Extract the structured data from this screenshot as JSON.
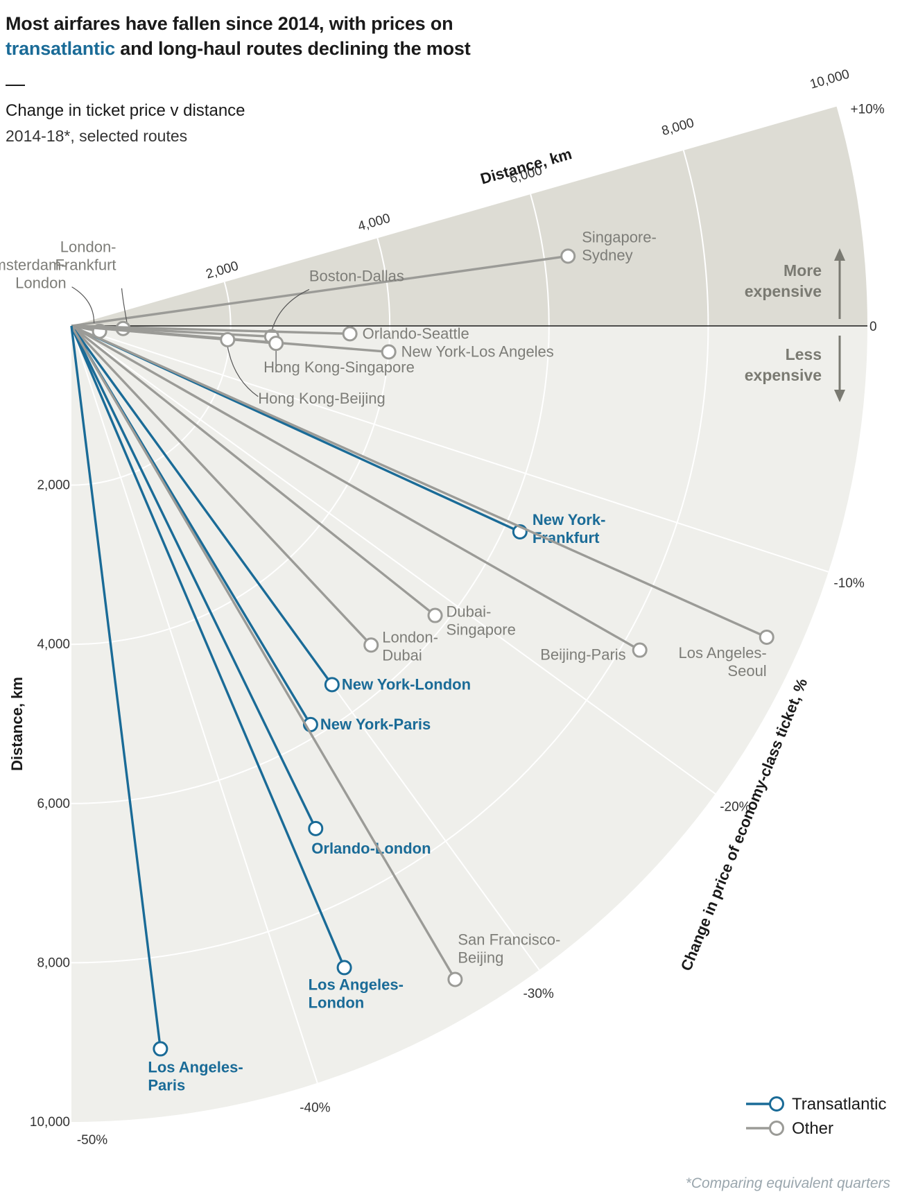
{
  "title": {
    "before": "Most airfares have fallen since 2014, with prices on",
    "highlight": "transatlantic",
    "after": "and long-haul routes declining the most"
  },
  "subtitle": "Change in ticket price v distance",
  "subtitle2": "2014-18*, selected routes",
  "footnote": "*Comparing equivalent quarters",
  "annotations": {
    "more": [
      "More",
      "expensive"
    ],
    "less": [
      "Less",
      "expensive"
    ]
  },
  "colors": {
    "transatlantic": "#1a6b97",
    "other": "#9b9b97",
    "panel": "#efefeb",
    "panel_positive": "#dddcd4"
  },
  "chart_data": {
    "type": "radial-scatter",
    "angle_axis": {
      "label": "Change in price of economy-class ticket, %",
      "min": -50,
      "max": 10,
      "ticks": [
        {
          "value": 10,
          "label": "+10%"
        },
        {
          "value": 0,
          "label": "0"
        },
        {
          "value": -10,
          "label": "-10%"
        },
        {
          "value": -20,
          "label": "-20%"
        },
        {
          "value": -30,
          "label": "-30%"
        },
        {
          "value": -40,
          "label": "-40%"
        },
        {
          "value": -50,
          "label": "-50%"
        }
      ]
    },
    "radius_axis": {
      "label": "Distance, km",
      "min": 0,
      "max": 10000,
      "ticks": [
        {
          "value": 2000,
          "label": "2,000"
        },
        {
          "value": 4000,
          "label": "4,000"
        },
        {
          "value": 6000,
          "label": "6,000"
        },
        {
          "value": 8000,
          "label": "8,000"
        },
        {
          "value": 10000,
          "label": "10,000"
        }
      ]
    },
    "legend": {
      "position": "bottom-right",
      "items": [
        {
          "label": "Transatlantic",
          "group": "transatlantic"
        },
        {
          "label": "Other",
          "group": "other"
        }
      ]
    },
    "series": [
      {
        "route": [
          "Singapore-",
          "Sydney"
        ],
        "group": "other",
        "distance_km": 6300,
        "change_pct": 5.0
      },
      {
        "route": [
          "London-",
          "Frankfurt"
        ],
        "group": "other",
        "distance_km": 650,
        "change_pct": -1.6
      },
      {
        "route": [
          "Amsterdam-",
          "London"
        ],
        "group": "other",
        "distance_km": 360,
        "change_pct": -6.0
      },
      {
        "route": [
          "Boston-Dallas"
        ],
        "group": "other",
        "distance_km": 2520,
        "change_pct": -1.7
      },
      {
        "route": [
          "Orlando-Seattle"
        ],
        "group": "other",
        "distance_km": 3500,
        "change_pct": -0.9
      },
      {
        "route": [
          "New York-Los Angeles"
        ],
        "group": "other",
        "distance_km": 4000,
        "change_pct": -2.6
      },
      {
        "route": [
          "Hong Kong-Singapore"
        ],
        "group": "other",
        "distance_km": 2580,
        "change_pct": -2.7
      },
      {
        "route": [
          "Hong Kong-Beijing"
        ],
        "group": "other",
        "distance_km": 1970,
        "change_pct": -2.8
      },
      {
        "route": [
          "New York-",
          "Frankfurt"
        ],
        "group": "transatlantic",
        "distance_km": 6200,
        "change_pct": -13.7
      },
      {
        "route": [
          "Dubai-",
          "Singapore"
        ],
        "group": "other",
        "distance_km": 5840,
        "change_pct": -21.4
      },
      {
        "route": [
          "London-",
          "Dubai"
        ],
        "group": "other",
        "distance_km": 5500,
        "change_pct": -26.0
      },
      {
        "route": [
          "New York-London"
        ],
        "group": "transatlantic",
        "distance_km": 5570,
        "change_pct": -30.0
      },
      {
        "route": [
          "New York-Paris"
        ],
        "group": "transatlantic",
        "distance_km": 5840,
        "change_pct": -32.8
      },
      {
        "route": [
          "Orlando-London"
        ],
        "group": "transatlantic",
        "distance_km": 7020,
        "change_pct": -35.6
      },
      {
        "route": [
          "Beijing-Paris"
        ],
        "group": "other",
        "distance_km": 8220,
        "change_pct": -16.5
      },
      {
        "route": [
          "Los Angeles-",
          "Seoul"
        ],
        "group": "other",
        "distance_km": 9570,
        "change_pct": -13.4
      },
      {
        "route": [
          "Los Angeles-",
          "London"
        ],
        "group": "transatlantic",
        "distance_km": 8760,
        "change_pct": -37.2
      },
      {
        "route": [
          "San Francisco-",
          "Beijing"
        ],
        "group": "other",
        "distance_km": 9520,
        "change_pct": -33.1
      },
      {
        "route": [
          "Los Angeles-",
          "Paris"
        ],
        "group": "transatlantic",
        "distance_km": 9150,
        "change_pct": -46.1
      }
    ]
  }
}
